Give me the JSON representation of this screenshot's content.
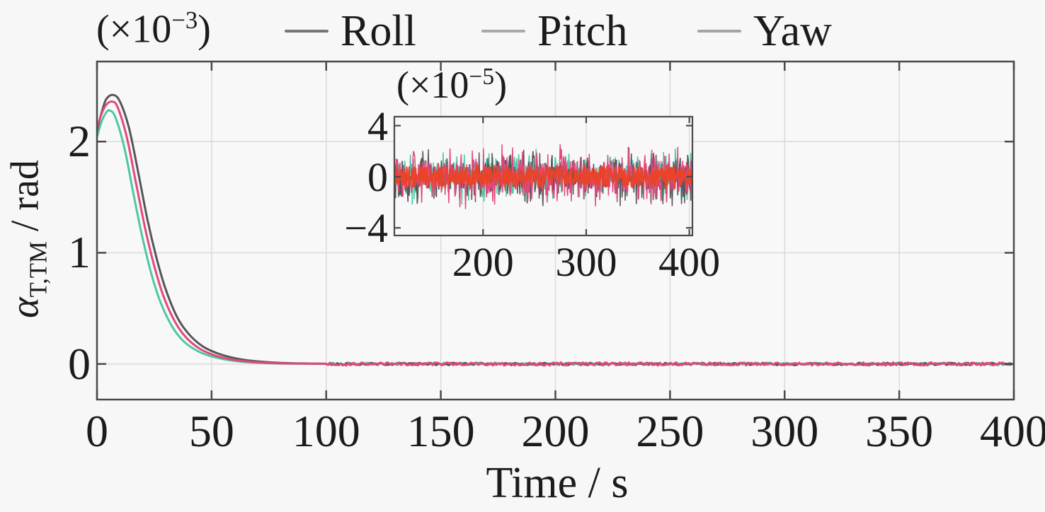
{
  "figure": {
    "background": "#f7f7f7",
    "plot_background": "#f8f8f8",
    "axis_color": "#4a4a4a",
    "grid_color": "#dcdcdc",
    "text_color": "#1b1b1b"
  },
  "legend": {
    "multiplier": {
      "prefix": "(×10",
      "exp": "−3",
      "suffix": ")"
    },
    "items": [
      {
        "label": "Roll",
        "marker_color": "#76767b",
        "line_color": "#55555b"
      },
      {
        "label": "Pitch",
        "marker_color": "#a8a8ad",
        "line_color": "#4cc8a3"
      },
      {
        "label": "Yaw",
        "marker_color": "#a3a3a8",
        "line_color": "#e2487e"
      }
    ]
  },
  "axes": {
    "main": {
      "xlabel": "Time / s",
      "ylabel": {
        "alpha": "α",
        "sub": "T,TM",
        "rest": " / rad"
      }
    },
    "inset": {
      "multiplier": {
        "prefix": "(×10",
        "exp": "−5",
        "suffix": ")"
      }
    }
  },
  "chart_data": [
    {
      "type": "line",
      "role": "main-plot",
      "title": "",
      "xlabel": "Time / s",
      "ylabel": "alpha_T,TM / rad",
      "y_unit_multiplier": "1e-3 rad",
      "xlim": [
        0,
        400
      ],
      "ylim": [
        -0.32,
        2.72
      ],
      "xticks": [
        0,
        50,
        100,
        150,
        200,
        250,
        300,
        350,
        400
      ],
      "yticks": [
        0,
        1,
        2
      ],
      "grid": true,
      "legend_position": "top",
      "series": [
        {
          "name": "Pitch",
          "color": "#4cc8a3",
          "t": [
            0,
            2,
            4,
            5.5,
            8,
            12,
            16,
            20,
            24,
            28,
            33,
            38,
            44,
            50,
            57,
            64,
            72,
            80,
            90,
            100
          ],
          "v_x1e3": [
            2.04,
            2.18,
            2.26,
            2.28,
            2.22,
            1.94,
            1.52,
            1.12,
            0.79,
            0.54,
            0.33,
            0.2,
            0.115,
            0.068,
            0.036,
            0.019,
            0.009,
            0.004,
            0.002,
            0.001
          ],
          "tail": {
            "from": 100,
            "to": 400,
            "mean_x1e3": 0,
            "noise_amp_x1e3": 0.01
          }
        },
        {
          "name": "Roll",
          "color": "#55555b",
          "t": [
            0,
            2,
            4,
            7,
            10,
            14,
            18,
            22,
            26,
            30,
            35,
            40,
            46,
            52,
            58,
            65,
            72,
            80,
            90,
            100
          ],
          "v_x1e3": [
            2.1,
            2.26,
            2.38,
            2.42,
            2.36,
            2.12,
            1.72,
            1.3,
            0.95,
            0.67,
            0.42,
            0.27,
            0.16,
            0.1,
            0.062,
            0.035,
            0.02,
            0.01,
            0.005,
            0.002
          ],
          "tail": {
            "from": 100,
            "to": 400,
            "mean_x1e3": 0,
            "noise_amp_x1e3": 0.011
          }
        },
        {
          "name": "Yaw",
          "color": "#e2487e",
          "t": [
            0,
            2,
            4,
            6.5,
            9,
            13,
            17,
            21,
            25,
            29,
            34,
            39,
            45,
            51,
            57,
            64,
            72,
            80,
            90,
            100
          ],
          "v_x1e3": [
            2.12,
            2.25,
            2.33,
            2.36,
            2.31,
            2.04,
            1.63,
            1.22,
            0.88,
            0.61,
            0.38,
            0.235,
            0.135,
            0.08,
            0.047,
            0.026,
            0.013,
            0.006,
            0.003,
            0.0015
          ],
          "tail": {
            "from": 100,
            "to": 400,
            "mean_x1e3": 0,
            "noise_amp_x1e3": 0.014
          }
        }
      ]
    },
    {
      "type": "line",
      "role": "zoom-inset",
      "description": "steady-state noise band around zero",
      "y_unit_multiplier": "1e-5 rad",
      "xlim": [
        114,
        403
      ],
      "ylim": [
        -4.6,
        4.7
      ],
      "xticks": [
        200,
        300,
        400
      ],
      "yticks": [
        -4,
        0,
        4
      ],
      "ytick_labels": [
        "−4",
        "0",
        "4"
      ],
      "grid": true,
      "series": [
        {
          "name": "Pitch",
          "color": "#4cc8a3",
          "spike_amp_x1e5": 1.9
        },
        {
          "name": "Roll",
          "color": "#55555b",
          "spike_amp_x1e5": 2.0
        },
        {
          "name": "Yaw",
          "color": "#e2487e",
          "spike_amp_x1e5": 2.2
        },
        {
          "name": "overlap-core",
          "color": "#e9432a",
          "band_amp_x1e5": 0.85
        }
      ]
    }
  ]
}
